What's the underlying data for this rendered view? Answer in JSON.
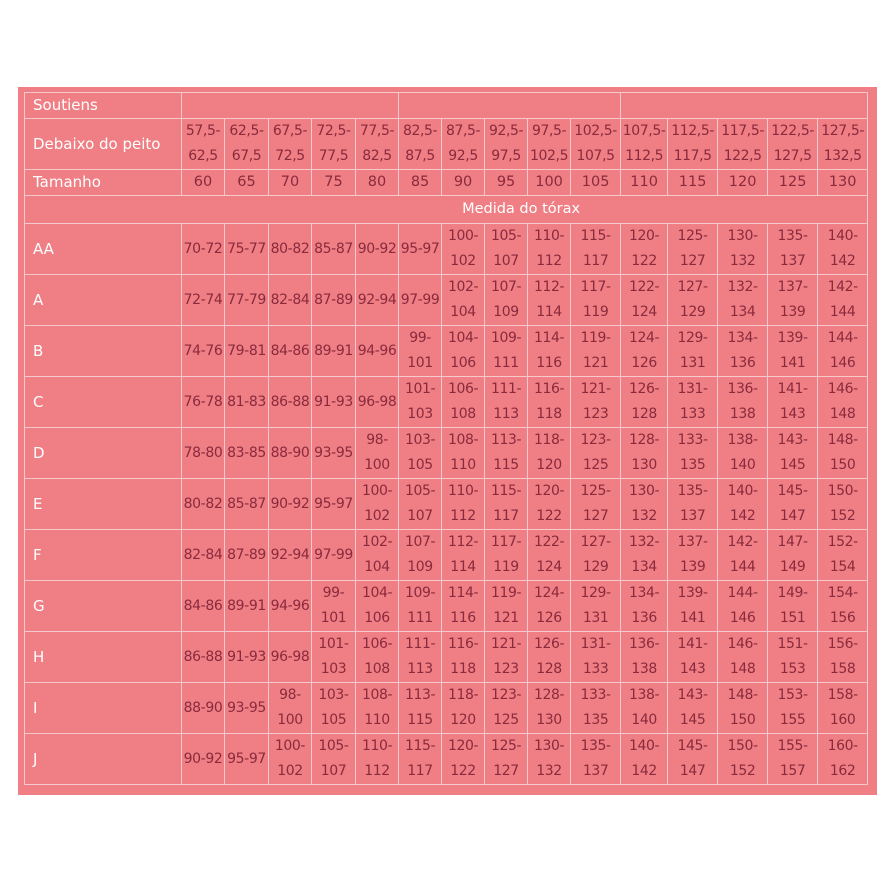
{
  "header": {
    "soutiens_label": "Soutiens",
    "underbust_label": "Debaixo do peito",
    "size_label": "Tamanho",
    "bust_label": "Medida do tórax"
  },
  "underbust_ranges": [
    "57,5-62,5",
    "62,5-67,5",
    "67,5-72,5",
    "72,5-77,5",
    "77,5-82,5",
    "82,5-87,5",
    "87,5-92,5",
    "92,5-97,5",
    "97,5-102,5",
    "102,5-107,5",
    "107,5-112,5",
    "112,5-117,5",
    "117,5-122,5",
    "122,5-127,5",
    "127,5-132,5"
  ],
  "sizes": [
    "60",
    "65",
    "70",
    "75",
    "80",
    "85",
    "90",
    "95",
    "100",
    "105",
    "110",
    "115",
    "120",
    "125",
    "130"
  ],
  "cups": [
    {
      "cup": "AA",
      "values": [
        "70-72",
        "75-77",
        "80-82",
        "85-87",
        "90-92",
        "95-97",
        "100-102",
        "105-107",
        "110-112",
        "115-117",
        "120-122",
        "125-127",
        "130-132",
        "135-137",
        "140-142"
      ]
    },
    {
      "cup": "A",
      "values": [
        "72-74",
        "77-79",
        "82-84",
        "87-89",
        "92-94",
        "97-99",
        "102-104",
        "107-109",
        "112-114",
        "117-119",
        "122-124",
        "127-129",
        "132-134",
        "137-139",
        "142-144"
      ]
    },
    {
      "cup": "B",
      "values": [
        "74-76",
        "79-81",
        "84-86",
        "89-91",
        "94-96",
        "99-101",
        "104-106",
        "109-111",
        "114-116",
        "119-121",
        "124-126",
        "129-131",
        "134-136",
        "139-141",
        "144-146"
      ]
    },
    {
      "cup": "C",
      "values": [
        "76-78",
        "81-83",
        "86-88",
        "91-93",
        "96-98",
        "101-103",
        "106-108",
        "111-113",
        "116-118",
        "121-123",
        "126-128",
        "131-133",
        "136-138",
        "141-143",
        "146-148"
      ]
    },
    {
      "cup": "D",
      "values": [
        "78-80",
        "83-85",
        "88-90",
        "93-95",
        "98-100",
        "103-105",
        "108-110",
        "113-115",
        "118-120",
        "123-125",
        "128-130",
        "133-135",
        "138-140",
        "143-145",
        "148-150"
      ]
    },
    {
      "cup": "E",
      "values": [
        "80-82",
        "85-87",
        "90-92",
        "95-97",
        "100-102",
        "105-107",
        "110-112",
        "115-117",
        "120-122",
        "125-127",
        "130-132",
        "135-137",
        "140-142",
        "145-147",
        "150-152"
      ]
    },
    {
      "cup": "F",
      "values": [
        "82-84",
        "87-89",
        "92-94",
        "97-99",
        "102-104",
        "107-109",
        "112-114",
        "117-119",
        "122-124",
        "127-129",
        "132-134",
        "137-139",
        "142-144",
        "147-149",
        "152-154"
      ]
    },
    {
      "cup": "G",
      "values": [
        "84-86",
        "89-91",
        "94-96",
        "99-101",
        "104-106",
        "109-111",
        "114-116",
        "119-121",
        "124-126",
        "129-131",
        "134-136",
        "139-141",
        "144-146",
        "149-151",
        "154-156"
      ]
    },
    {
      "cup": "H",
      "values": [
        "86-88",
        "91-93",
        "96-98",
        "101-103",
        "106-108",
        "111-113",
        "116-118",
        "121-123",
        "126-128",
        "131-133",
        "136-138",
        "141-143",
        "146-148",
        "151-153",
        "156-158"
      ]
    },
    {
      "cup": "I",
      "values": [
        "88-90",
        "93-95",
        "98-100",
        "103-105",
        "108-110",
        "113-115",
        "118-120",
        "123-125",
        "128-130",
        "133-135",
        "138-140",
        "143-145",
        "148-150",
        "153-155",
        "158-160"
      ]
    },
    {
      "cup": "J",
      "values": [
        "90-92",
        "95-97",
        "100-102",
        "105-107",
        "110-112",
        "115-117",
        "120-122",
        "125-127",
        "130-132",
        "135-137",
        "140-142",
        "145-147",
        "150-152",
        "155-157",
        "160-162"
      ]
    }
  ],
  "colors": {
    "background": "#EF7F85",
    "value_text": "#8A2A3C",
    "label_text": "#FFFFFF",
    "grid": "#F7C9CC"
  }
}
